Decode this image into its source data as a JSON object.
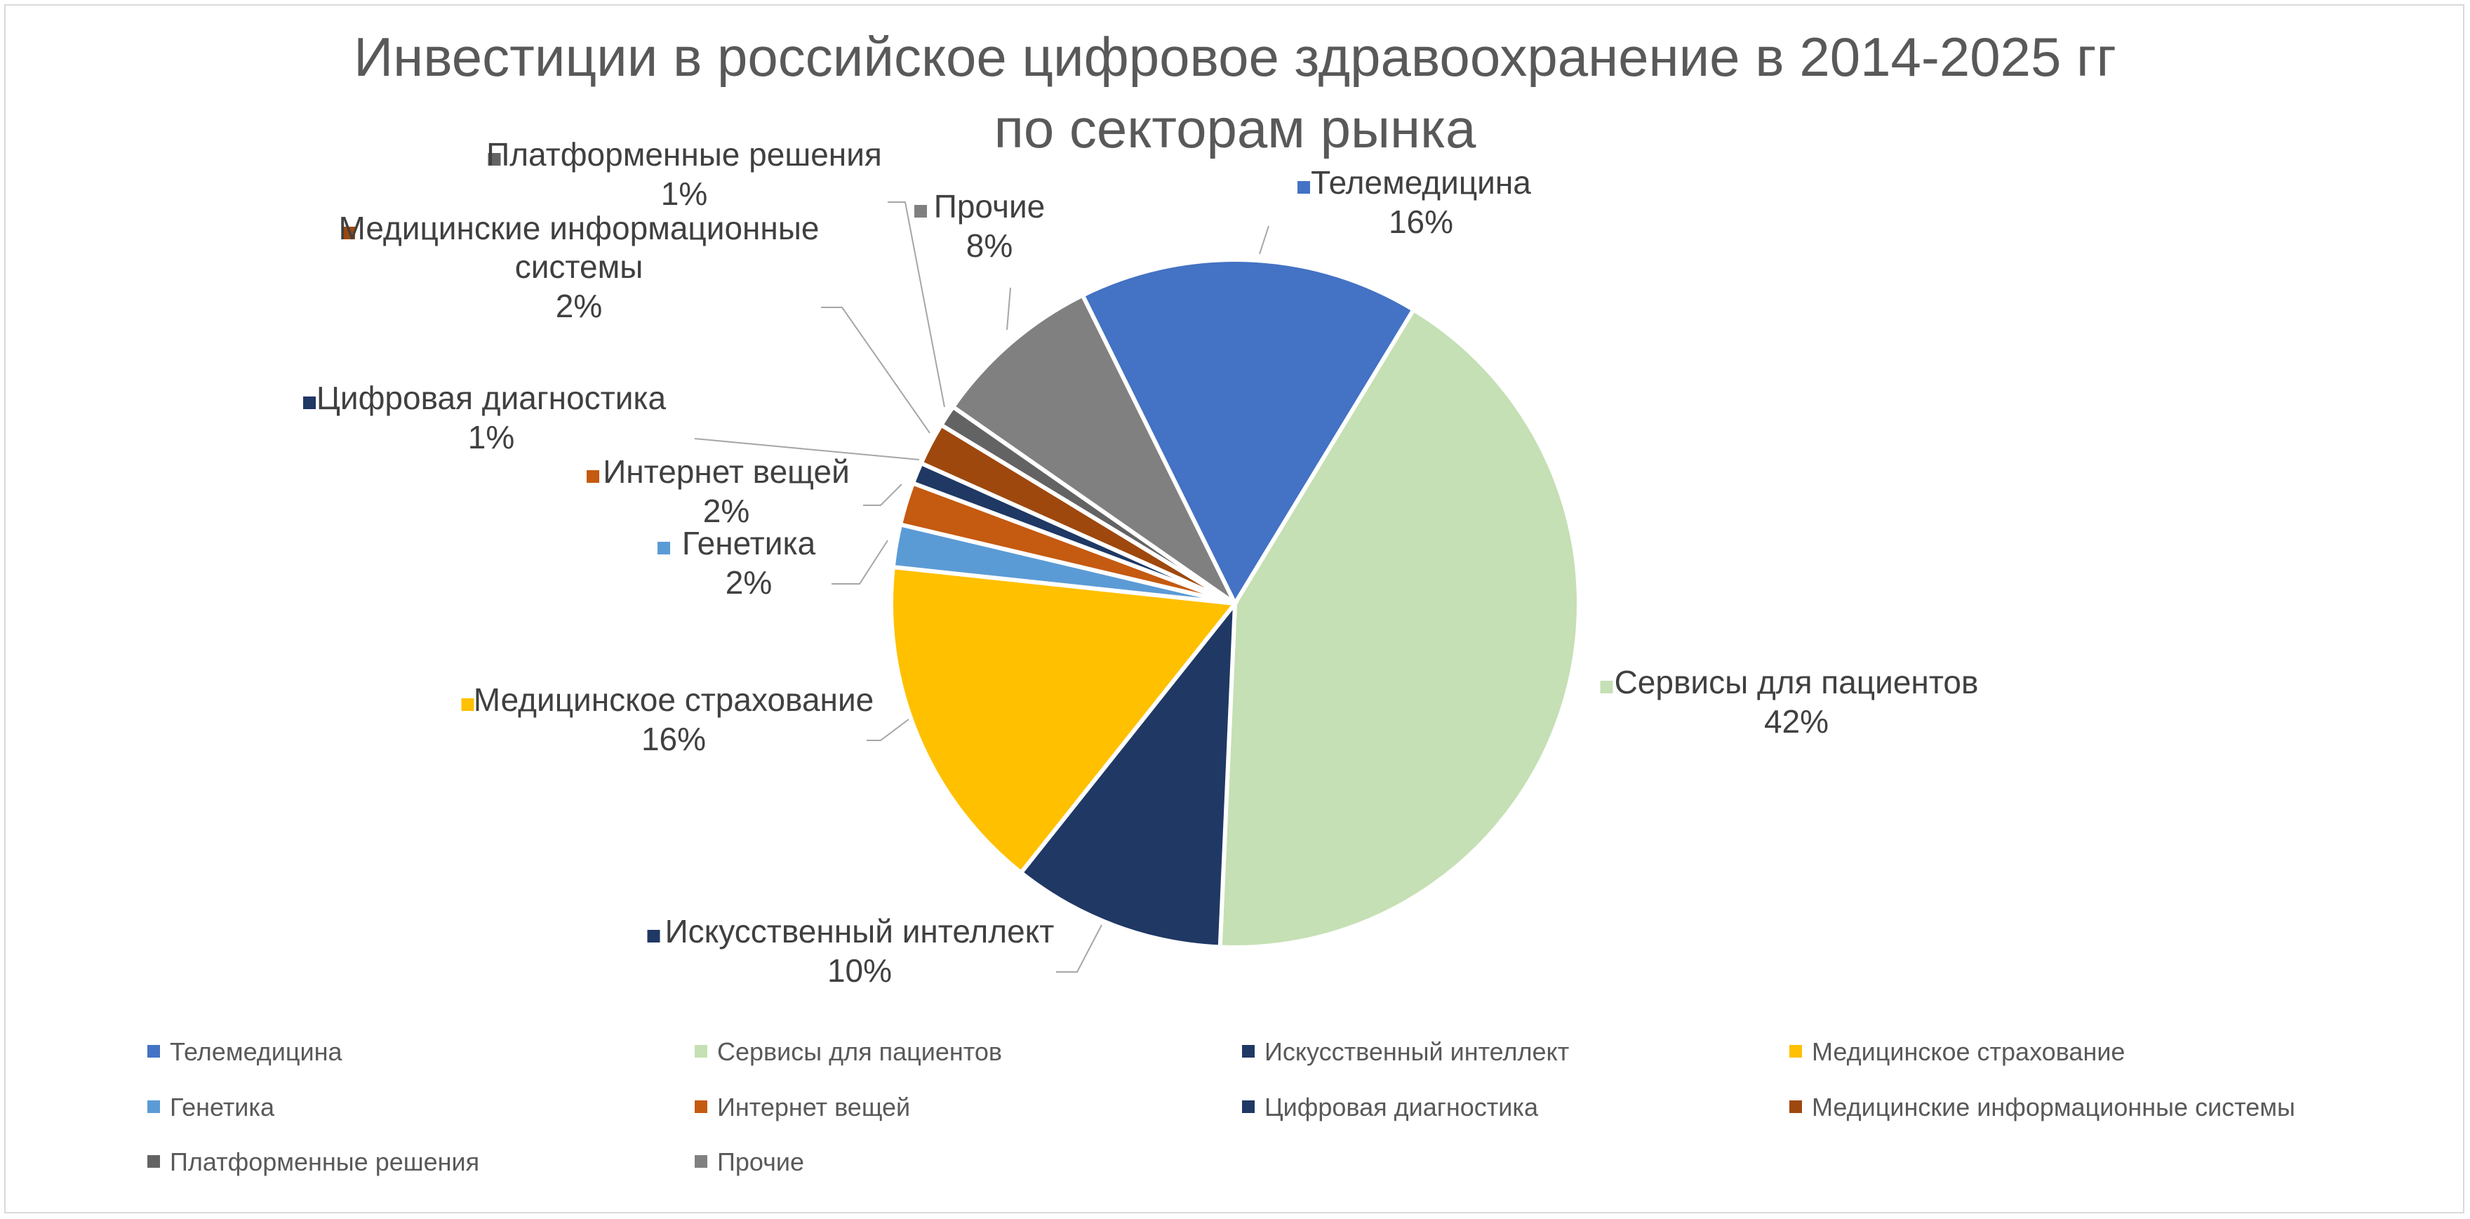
{
  "chart_data": {
    "type": "pie",
    "title": "Инвестиции в российское цифровое здравоохранение в 2014-2025 гг",
    "subtitle": "по секторам рынка",
    "legend_position": "bottom",
    "slices": [
      {
        "name": "Телемедицина",
        "value": 16,
        "label": "16%",
        "color": "#4472C4"
      },
      {
        "name": "Сервисы для пациентов",
        "value": 42,
        "label": "42%",
        "color": "#C5E0B4"
      },
      {
        "name": "Искусственный интеллект",
        "value": 10,
        "label": "10%",
        "color": "#203864"
      },
      {
        "name": "Медицинское страхование",
        "value": 16,
        "label": "16%",
        "color": "#FFC000"
      },
      {
        "name": "Генетика",
        "value": 2,
        "label": "2%",
        "color": "#5B9BD5"
      },
      {
        "name": "Интернет вещей",
        "value": 2,
        "label": "2%",
        "color": "#C55A11"
      },
      {
        "name": "Цифровая диагностика",
        "value": 1,
        "label": "1%",
        "color": "#1F3864"
      },
      {
        "name": "Медицинские информационные системы",
        "value": 2,
        "label": "2%",
        "color": "#9E480E"
      },
      {
        "name": "Платформенные решения",
        "value": 1,
        "label": "1%",
        "color": "#636363"
      },
      {
        "name": "Прочие",
        "value": 8,
        "label": "8%",
        "color": "#808080"
      }
    ]
  }
}
